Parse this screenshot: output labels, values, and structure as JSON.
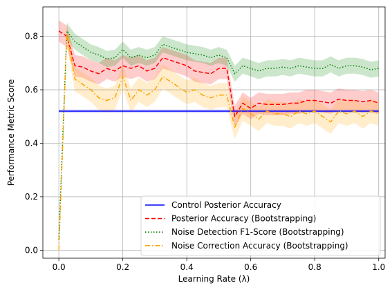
{
  "chart_data": {
    "type": "line",
    "xlabel": "Learning Rate (λ)",
    "ylabel": "Performance Metric Score",
    "xlim": [
      -0.05,
      1.02
    ],
    "ylim": [
      -0.03,
      0.91
    ],
    "grid": true,
    "legend_position": "lower-right",
    "x_ticks": [
      0.0,
      0.2,
      0.4,
      0.6,
      0.8,
      1.0
    ],
    "x_tick_labels": [
      "0.0",
      "0.2",
      "0.4",
      "0.6",
      "0.8",
      "1.0"
    ],
    "y_ticks": [
      0.0,
      0.2,
      0.4,
      0.6,
      0.8
    ],
    "y_tick_labels": [
      "0.0",
      "0.2",
      "0.4",
      "0.6",
      "0.8"
    ],
    "x": [
      0.0,
      0.025,
      0.05,
      0.075,
      0.1,
      0.125,
      0.15,
      0.175,
      0.2,
      0.225,
      0.25,
      0.275,
      0.3,
      0.325,
      0.35,
      0.375,
      0.4,
      0.425,
      0.45,
      0.475,
      0.5,
      0.525,
      0.55,
      0.575,
      0.6,
      0.625,
      0.65,
      0.675,
      0.7,
      0.725,
      0.75,
      0.775,
      0.8,
      0.825,
      0.85,
      0.875,
      0.9,
      0.925,
      0.95,
      0.975,
      1.0
    ],
    "series": [
      {
        "name": "Control Posterior Accuracy",
        "color": "#0000ff",
        "style": "solid",
        "values": [
          0.52,
          0.52,
          0.52,
          0.52,
          0.52,
          0.52,
          0.52,
          0.52,
          0.52,
          0.52,
          0.52,
          0.52,
          0.52,
          0.52,
          0.52,
          0.52,
          0.52,
          0.52,
          0.52,
          0.52,
          0.52,
          0.52,
          0.52,
          0.52,
          0.52,
          0.52,
          0.52,
          0.52,
          0.52,
          0.52,
          0.52,
          0.52,
          0.52,
          0.52,
          0.52,
          0.52,
          0.52,
          0.52,
          0.52,
          0.52,
          0.52
        ],
        "band": 0.006
      },
      {
        "name": "Posterior Accuracy (Bootstrapping)",
        "color": "#ff0000",
        "style": "dashed",
        "values": [
          0.82,
          0.8,
          0.69,
          0.685,
          0.67,
          0.66,
          0.68,
          0.67,
          0.69,
          0.68,
          0.69,
          0.67,
          0.68,
          0.72,
          0.71,
          0.7,
          0.69,
          0.67,
          0.665,
          0.66,
          0.68,
          0.68,
          0.5,
          0.55,
          0.53,
          0.55,
          0.545,
          0.545,
          0.545,
          0.55,
          0.55,
          0.56,
          0.56,
          0.555,
          0.55,
          0.565,
          0.56,
          0.56,
          0.555,
          0.56,
          0.55
        ],
        "band": 0.04
      },
      {
        "name": "Noise Detection F1-Score (Bootstrapping)",
        "color": "#008000",
        "style": "dotted",
        "values": [
          0.04,
          0.82,
          0.78,
          0.76,
          0.74,
          0.73,
          0.715,
          0.72,
          0.75,
          0.72,
          0.73,
          0.72,
          0.73,
          0.77,
          0.76,
          0.75,
          0.74,
          0.735,
          0.73,
          0.72,
          0.73,
          0.72,
          0.66,
          0.69,
          0.68,
          0.67,
          0.68,
          0.68,
          0.685,
          0.68,
          0.69,
          0.685,
          0.68,
          0.68,
          0.695,
          0.68,
          0.69,
          0.69,
          0.685,
          0.675,
          0.68
        ],
        "band": 0.03
      },
      {
        "name": "Noise Correction Accuracy (Bootstrapping)",
        "color": "#ffa500",
        "style": "dashdot",
        "values": [
          0.0,
          0.81,
          0.64,
          0.62,
          0.6,
          0.57,
          0.56,
          0.57,
          0.65,
          0.56,
          0.6,
          0.58,
          0.6,
          0.65,
          0.63,
          0.61,
          0.59,
          0.6,
          0.58,
          0.57,
          0.58,
          0.58,
          0.46,
          0.53,
          0.51,
          0.49,
          0.52,
          0.51,
          0.51,
          0.5,
          0.52,
          0.51,
          0.52,
          0.5,
          0.48,
          0.52,
          0.51,
          0.52,
          0.5,
          0.52,
          0.51
        ],
        "band": 0.045
      }
    ]
  }
}
